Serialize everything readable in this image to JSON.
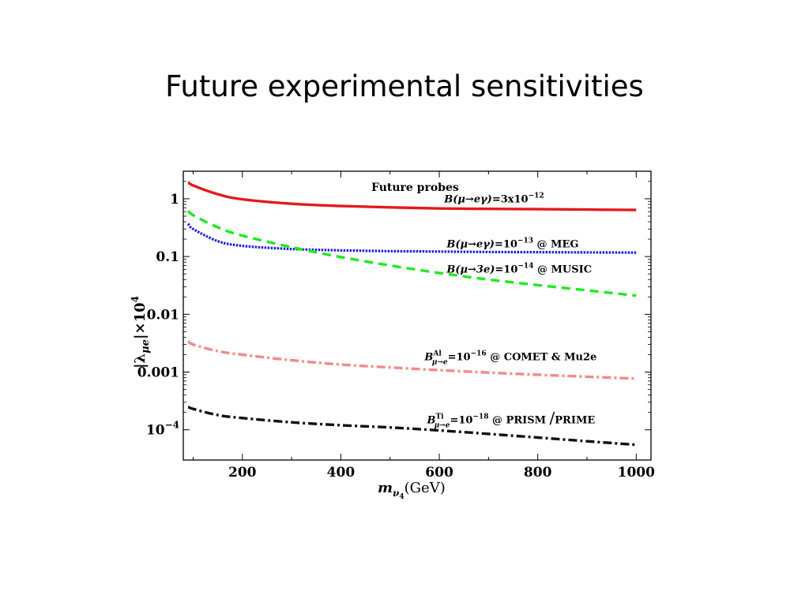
{
  "slide": {
    "title": "Future experimental sensitivities"
  },
  "chart_data": {
    "type": "line",
    "title": "Future probes",
    "xlabel": "m_ν4 (GeV)",
    "xlabel_parts": {
      "symbol": "m",
      "sub1": "ν",
      "sub2": "4",
      "unit": "(GeV)"
    },
    "ylabel": "|λ_μe|×10^4",
    "ylabel_parts": {
      "open": "|λ",
      "sub": "μe",
      "close": "|×10",
      "sup": "4"
    },
    "xlim": [
      80,
      1030
    ],
    "ylim": [
      3e-05,
      3
    ],
    "y_scale": "log",
    "grid": false,
    "x_ticks": [
      200,
      400,
      600,
      800,
      1000
    ],
    "y_ticks": [
      {
        "value": 1,
        "label": "1"
      },
      {
        "value": 0.1,
        "label": "0.1"
      },
      {
        "value": 0.01,
        "label": "0.01"
      },
      {
        "value": 0.001,
        "label": "0.001"
      },
      {
        "value": 0.0001,
        "label": "10",
        "sup": "−4"
      }
    ],
    "series": [
      {
        "name": "B(μ→eγ)=3x10^-12",
        "style": "solid",
        "color": "#e31a1c",
        "label": {
          "pre": "B(μ→eγ)=3x10",
          "sup": "−12",
          "post": "",
          "anchor": [
            610,
            0.87
          ]
        },
        "x": [
          90,
          100,
          150,
          200,
          300,
          400,
          500,
          600,
          700,
          800,
          900,
          1000
        ],
        "y": [
          1.95,
          1.7,
          1.2,
          0.98,
          0.82,
          0.75,
          0.71,
          0.68,
          0.67,
          0.66,
          0.65,
          0.64
        ]
      },
      {
        "name": "B(μ→eγ)=10^-13 @ MEG",
        "style": "dotted",
        "color": "#1f1fe0",
        "label": {
          "pre": "B(μ→eγ)=10",
          "sup": "−13",
          "post": " @ MEG",
          "anchor": [
            615,
            0.145
          ]
        },
        "x": [
          90,
          100,
          150,
          200,
          300,
          400,
          500,
          600,
          700,
          800,
          900,
          1000
        ],
        "y": [
          0.37,
          0.3,
          0.185,
          0.153,
          0.135,
          0.128,
          0.124,
          0.122,
          0.12,
          0.119,
          0.118,
          0.117
        ]
      },
      {
        "name": "B(μ→3e)=10^-14 @ MUSIC",
        "style": "dashed",
        "color": "#22e822",
        "label": {
          "pre": "B(μ→3e)=10",
          "sup": "−14",
          "post": " @ MUSIC",
          "anchor": [
            615,
            0.053
          ]
        },
        "x": [
          90,
          100,
          150,
          200,
          300,
          400,
          500,
          600,
          700,
          800,
          900,
          1000
        ],
        "y": [
          0.62,
          0.52,
          0.32,
          0.23,
          0.145,
          0.098,
          0.07,
          0.052,
          0.04,
          0.032,
          0.026,
          0.021
        ]
      },
      {
        "name": "B^Al_μ→e=10^-16 @ COMET & Mu2e",
        "style": "dashdot",
        "color": "#f4898a",
        "label": {
          "pre": "B",
          "subsup_sub": "μ→e",
          "subsup_sup": "Al",
          "mid": "=10",
          "sup": "−16",
          "post": " @ COMET  & Mu2e",
          "anchor": [
            570,
            0.0016
          ]
        },
        "x": [
          90,
          100,
          150,
          200,
          300,
          400,
          500,
          600,
          700,
          800,
          900,
          1000
        ],
        "y": [
          0.0034,
          0.003,
          0.0023,
          0.002,
          0.0016,
          0.00135,
          0.0012,
          0.00108,
          0.00098,
          0.0009,
          0.00083,
          0.00077
        ]
      },
      {
        "name": "B^Ti_μ→e=10^-18 @ PRISM/PRIME",
        "style": "dashdot",
        "color": "#111111",
        "label": {
          "pre": "B",
          "subsup_sub": "μ→e",
          "subsup_sup": "Ti",
          "mid": "=10",
          "sup": "−18",
          "post": " @ PRISM",
          "post2": "PRIME",
          "anchor": [
            575,
            0.00013
          ]
        },
        "x": [
          90,
          100,
          150,
          200,
          300,
          400,
          500,
          600,
          700,
          800,
          900,
          1000
        ],
        "y": [
          0.00025,
          0.00023,
          0.00018,
          0.00016,
          0.000135,
          0.00012,
          0.00011,
          9.75e-05,
          8.5e-05,
          7.35e-05,
          6.35e-05,
          5.5e-05
        ]
      }
    ]
  }
}
